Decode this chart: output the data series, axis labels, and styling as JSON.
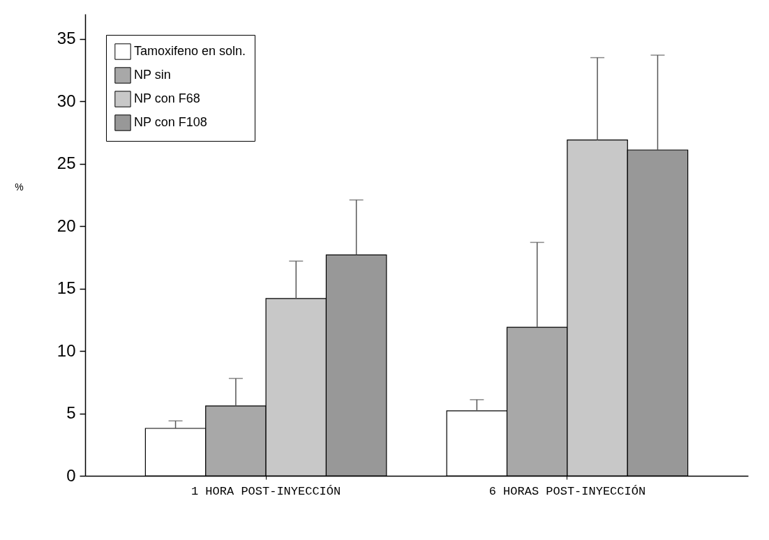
{
  "chart_data": {
    "type": "bar",
    "ylabel": "%",
    "categories": [
      "1 HORA POST-INYECCIÓN",
      "6 HORAS POST-INYECCIÓN"
    ],
    "series": [
      {
        "name": "Tamoxifeno en soln.",
        "color": "#ffffff",
        "values": [
          3.8,
          5.2
        ],
        "errors": [
          [
            3.8,
            4.4
          ],
          [
            5.2,
            6.1
          ]
        ]
      },
      {
        "name": "NP sin",
        "color": "#a8a8a8",
        "values": [
          5.6,
          11.9
        ],
        "errors": [
          [
            5.6,
            7.8
          ],
          [
            11.9,
            18.7
          ]
        ]
      },
      {
        "name": "NP con F68",
        "color": "#c8c8c8",
        "values": [
          14.2,
          26.9
        ],
        "errors": [
          [
            14.2,
            17.2
          ],
          [
            26.9,
            33.5
          ]
        ]
      },
      {
        "name": "NP con F108",
        "color": "#989898",
        "values": [
          17.7,
          26.1
        ],
        "errors": [
          [
            17.7,
            22.1
          ],
          [
            26.1,
            33.7
          ]
        ]
      }
    ],
    "ylim": [
      0,
      37
    ],
    "yticks": [
      0,
      5,
      10,
      15,
      20,
      25,
      30,
      35
    ],
    "grid": false,
    "legend": "top left"
  }
}
